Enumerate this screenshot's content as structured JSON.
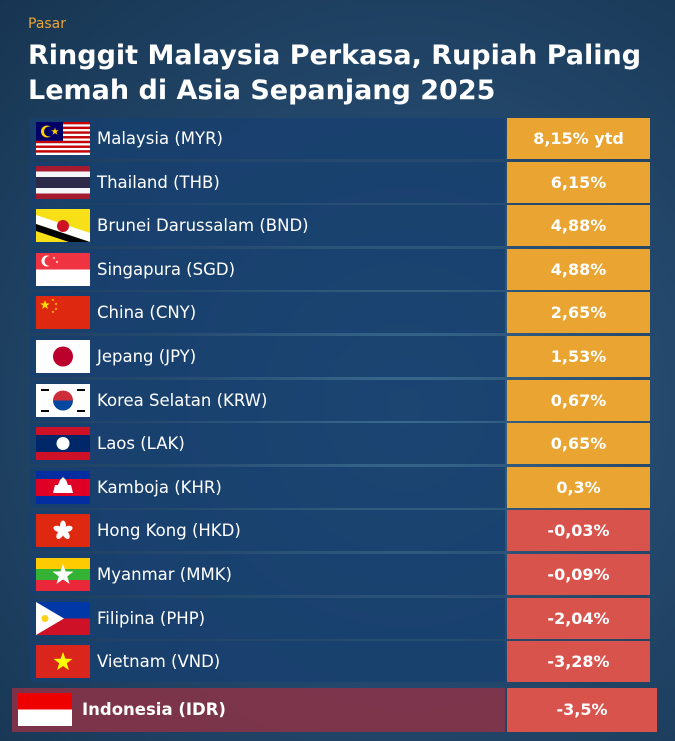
{
  "header": {
    "kicker": "Pasar",
    "title": "Ringgit Malaysia Perkasa, Rupiah Paling Lemah di Asia Sepanjang 2025"
  },
  "table": {
    "rows": [
      {
        "country": "Malaysia (MYR)",
        "change": "8,15% ytd",
        "color": "#e9a431"
      },
      {
        "country": "Thailand (THB)",
        "change": "6,15%",
        "color": "#e9a431"
      },
      {
        "country": "Brunei Darussalam (BND)",
        "change": "4,88%",
        "color": "#e9a431"
      },
      {
        "country": "Singapura (SGD)",
        "change": "4,88%",
        "color": "#e9a431"
      },
      {
        "country": "China (CNY)",
        "change": "2,65%",
        "color": "#e9a431"
      },
      {
        "country": "Jepang (JPY)",
        "change": "1,53%",
        "color": "#e9a431"
      },
      {
        "country": "Korea Selatan (KRW)",
        "change": "0,67%",
        "color": "#e9a431"
      },
      {
        "country": "Laos (LAK)",
        "change": "0,65%",
        "color": "#e9a431"
      },
      {
        "country": "Kamboja (KHR)",
        "change": "0,3%",
        "color": "#e9a431"
      },
      {
        "country": "Hong Kong (HKD)",
        "change": "-0,03%",
        "color": "#d9534d"
      },
      {
        "country": "Myanmar (MMK)",
        "change": "-0,09%",
        "color": "#d9534d"
      },
      {
        "country": "Filipina (PHP)",
        "change": "-2,04%",
        "color": "#d9534d"
      },
      {
        "country": "Vietnam (VND)",
        "change": "-3,28%",
        "color": "#d9534d"
      },
      {
        "country": "Indonesia (IDR)",
        "change": "-3,5%",
        "color": "#d9534d"
      }
    ]
  }
}
